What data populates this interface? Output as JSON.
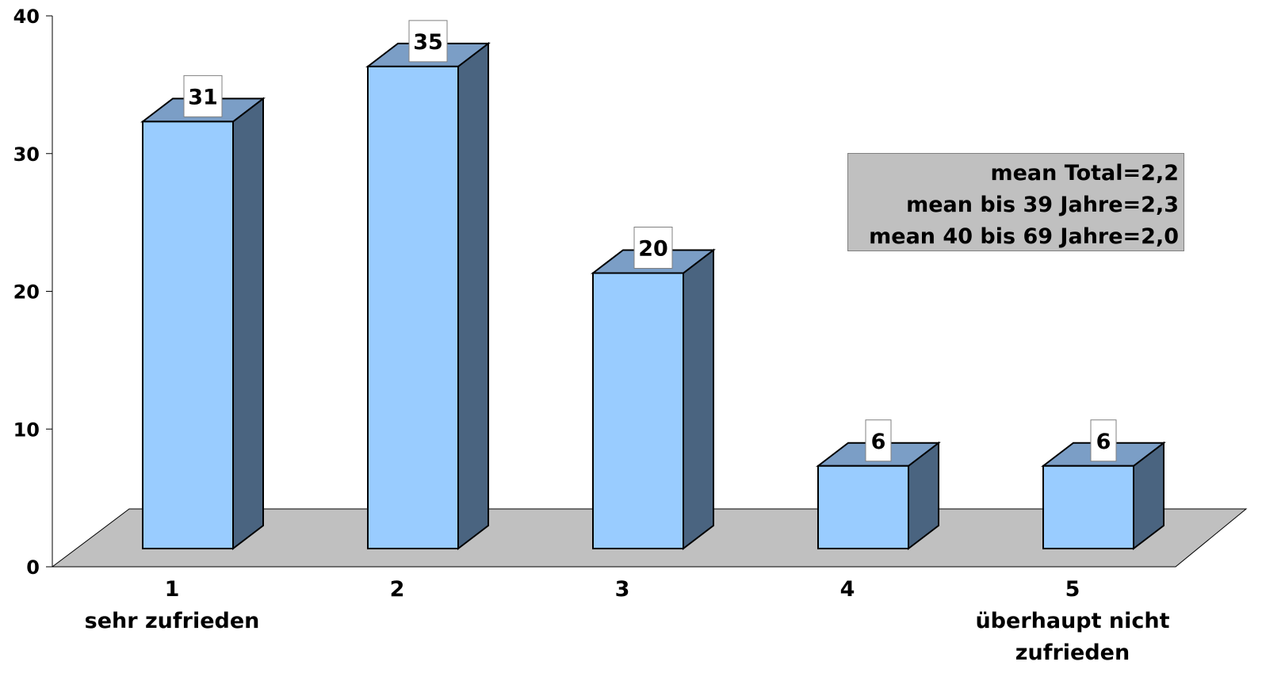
{
  "chart_data": {
    "type": "bar",
    "title": "",
    "xlabel": "",
    "ylabel": "",
    "ylim": [
      0,
      40
    ],
    "yticks": [
      "0",
      "10",
      "20",
      "30",
      "40"
    ],
    "categories": [
      {
        "label": "1",
        "sublabel": [
          "sehr zufrieden"
        ]
      },
      {
        "label": "2",
        "sublabel": []
      },
      {
        "label": "3",
        "sublabel": []
      },
      {
        "label": "4",
        "sublabel": []
      },
      {
        "label": "5",
        "sublabel": [
          "überhaupt nicht",
          "zufrieden"
        ]
      }
    ],
    "values": [
      31,
      35,
      20,
      6,
      6
    ],
    "data_labels": [
      "31",
      "35",
      "20",
      "6",
      "6"
    ],
    "style": "3d",
    "colors": {
      "bar_front": "#99ccff",
      "bar_top": "#7b9ec6",
      "bar_side": "#4a6480",
      "floor": "#c0c0c0"
    },
    "annotation": {
      "lines": [
        "mean Total=2,2",
        "mean bis 39 Jahre=2,3",
        "mean 40 bis 69 Jahre=2,0"
      ]
    }
  }
}
